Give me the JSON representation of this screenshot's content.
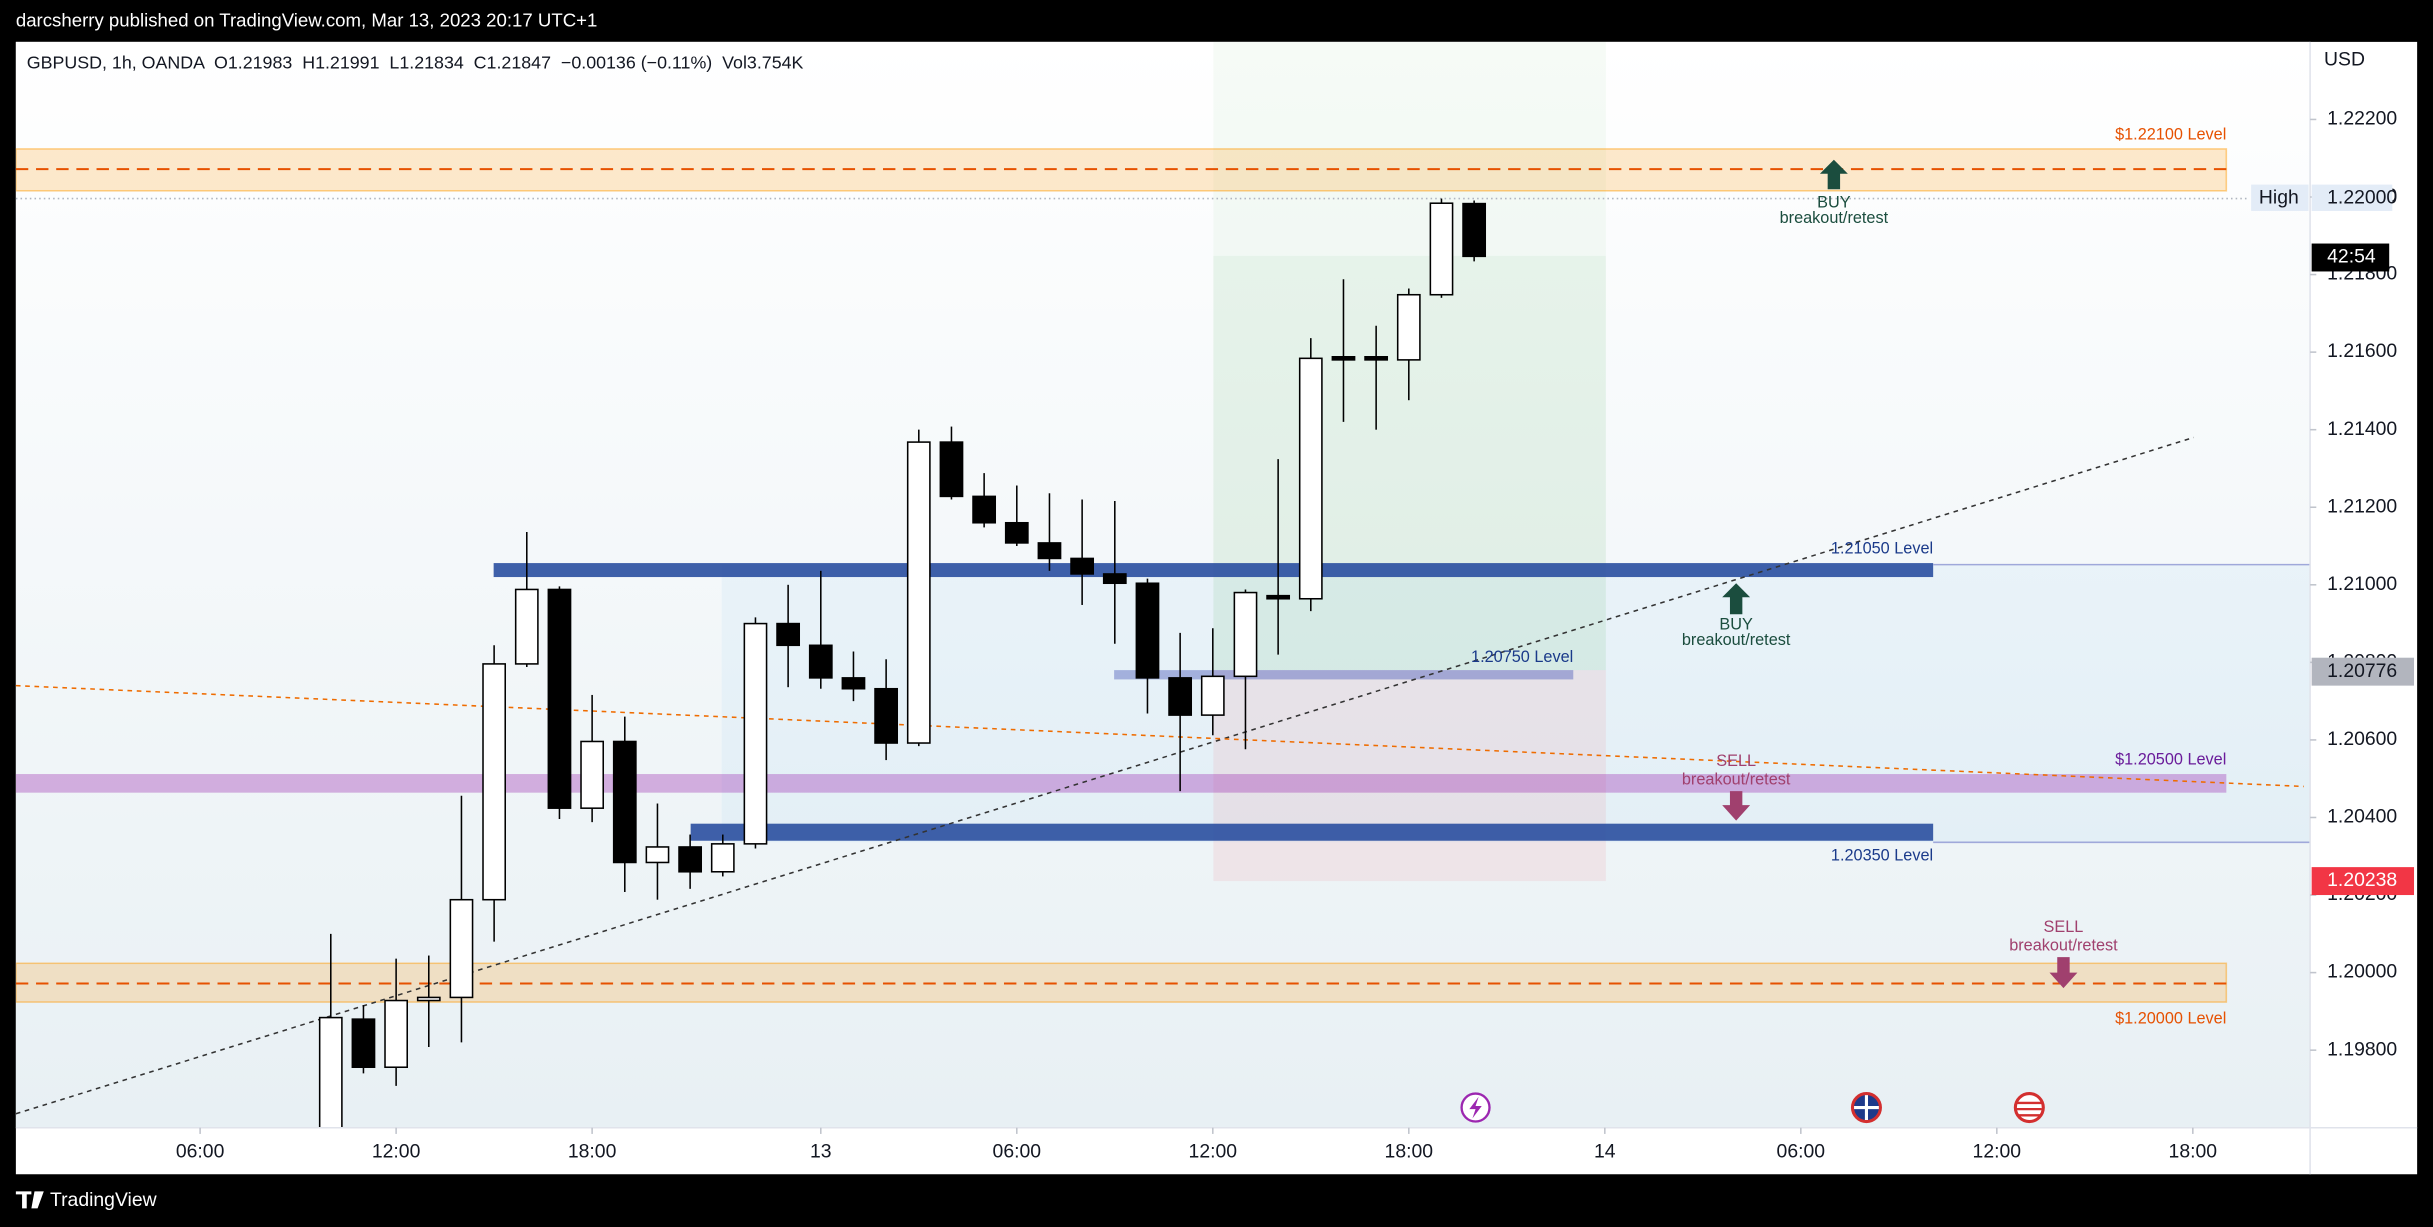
{
  "header": {
    "publisher": "darcsherry published on TradingView.com, Mar 13, 2023 20:17 UTC+1"
  },
  "footer": {
    "brand": "TradingView"
  },
  "chart_data": {
    "type": "candlestick",
    "title": "GBPUSD, 1h, OANDA  O1.21983  H1.21991  L1.21834  C1.21847  −0.00136 (−0.11%)  Vol3.754K",
    "y_axis_unit": "USD",
    "up_color": "#ffffff",
    "down_color": "#000000",
    "grid": false,
    "x": [
      0,
      1,
      2,
      3,
      4,
      5,
      6,
      7,
      8,
      9,
      10,
      11,
      12,
      13,
      14,
      15,
      16,
      17,
      18,
      19,
      20,
      21,
      22,
      23,
      24,
      25,
      26,
      27,
      28,
      29,
      30,
      31,
      32,
      33,
      34,
      35
    ],
    "open": [
      1.1958,
      1.1988,
      1.19756,
      1.19928,
      1.19936,
      1.20188,
      1.20796,
      1.20988,
      1.20424,
      1.20596,
      1.20284,
      1.20324,
      1.2026,
      1.20332,
      1.209,
      1.20844,
      1.2076,
      1.20732,
      1.20592,
      1.21368,
      1.21228,
      1.2116,
      1.21108,
      1.21068,
      1.21028,
      1.21004,
      1.2076,
      1.20664,
      1.20764,
      1.20972,
      1.20964,
      1.21584,
      1.21584,
      1.2158,
      1.21748,
      1.21983
    ],
    "high": [
      1.201,
      1.19916,
      1.20036,
      1.20044,
      1.20456,
      1.20844,
      1.21136,
      1.20996,
      1.20716,
      1.2066,
      1.20436,
      1.20356,
      1.20356,
      1.20916,
      1.21,
      1.21036,
      1.20828,
      1.20808,
      1.214,
      1.21408,
      1.21288,
      1.21256,
      1.21236,
      1.2122,
      1.21216,
      1.21016,
      1.20876,
      1.20888,
      1.20988,
      1.21324,
      1.21636,
      1.21788,
      1.21668,
      1.21764,
      1.21996,
      1.21991
    ],
    "low": [
      1.1956,
      1.1974,
      1.19708,
      1.19808,
      1.1982,
      1.2008,
      1.20788,
      1.20396,
      1.20388,
      1.20208,
      1.20188,
      1.20216,
      1.20248,
      1.2032,
      1.20736,
      1.20732,
      1.207,
      1.20548,
      1.20584,
      1.2122,
      1.21148,
      1.211,
      1.21036,
      1.20948,
      1.20848,
      1.20668,
      1.20468,
      1.20612,
      1.20576,
      1.2082,
      1.20932,
      1.2142,
      1.214,
      1.21476,
      1.2174,
      1.21834
    ],
    "close": [
      1.19884,
      1.19756,
      1.19928,
      1.19936,
      1.20188,
      1.20796,
      1.20988,
      1.20424,
      1.20596,
      1.20284,
      1.20324,
      1.2026,
      1.20332,
      1.209,
      1.20844,
      1.2076,
      1.20732,
      1.20592,
      1.21368,
      1.21228,
      1.2116,
      1.21108,
      1.21068,
      1.21028,
      1.21004,
      1.2076,
      1.20664,
      1.20764,
      1.2098,
      1.20964,
      1.21584,
      1.21584,
      1.21584,
      1.21748,
      1.21984,
      1.21847
    ],
    "xlim": [
      -9.64,
      60.59
    ],
    "xticks": [
      {
        "value": -4,
        "label": "06:00"
      },
      {
        "value": 2,
        "label": "12:00"
      },
      {
        "value": 8,
        "label": "18:00"
      },
      {
        "value": 15,
        "label": "13"
      },
      {
        "value": 21,
        "label": "06:00"
      },
      {
        "value": 27,
        "label": "12:00"
      },
      {
        "value": 33,
        "label": "18:00"
      },
      {
        "value": 39,
        "label": "14"
      },
      {
        "value": 45,
        "label": "06:00"
      },
      {
        "value": 51,
        "label": "12:00"
      },
      {
        "value": 57,
        "label": "18:00"
      }
    ],
    "ylim": [
      1.196,
      1.224
    ],
    "yticks": [
      {
        "value": 1.198,
        "label": "1.19800"
      },
      {
        "value": 1.2,
        "label": "1.20000"
      },
      {
        "value": 1.202,
        "label": "1.20200"
      },
      {
        "value": 1.204,
        "label": "1.20400"
      },
      {
        "value": 1.206,
        "label": "1.20600"
      },
      {
        "value": 1.208,
        "label": "1.20800"
      },
      {
        "value": 1.21,
        "label": "1.21000"
      },
      {
        "value": 1.212,
        "label": "1.21200"
      },
      {
        "value": 1.214,
        "label": "1.21400"
      },
      {
        "value": 1.216,
        "label": "1.21600"
      },
      {
        "value": 1.218,
        "label": "1.21800"
      },
      {
        "value": 1.22,
        "label": "1.22000"
      },
      {
        "value": 1.222,
        "label": "1.22200"
      }
    ],
    "annotations": [
      "$1.22100 Level",
      "BUY",
      "breakout/retest",
      "1.21050 Level",
      "BUY",
      "breakout/retest",
      "1.20750 Level",
      "SELL",
      "breakout/retest",
      "$1.20500 Level",
      "1.20350 Level",
      "SELL",
      "breakout/retest",
      "$1.20000 Level"
    ],
    "price_tags": [
      "High",
      "1.22000",
      "42:54",
      "1.20776",
      "1.20238"
    ]
  }
}
